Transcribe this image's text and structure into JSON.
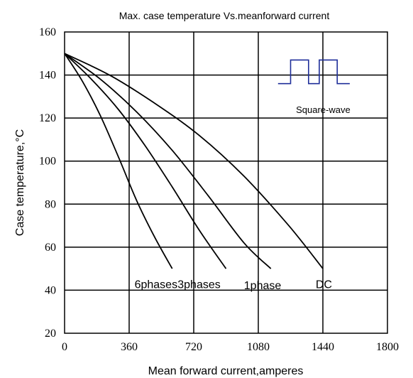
{
  "chart_data": {
    "type": "line",
    "title": "Max. case temperature Vs.meanforward current",
    "xlabel": "Mean forward current,amperes",
    "ylabel": "Case temperature,°C",
    "xlim": [
      0,
      1800
    ],
    "ylim": [
      20,
      160
    ],
    "x_ticks": [
      0,
      360,
      720,
      1080,
      1440,
      1800
    ],
    "y_ticks": [
      20,
      40,
      60,
      80,
      100,
      120,
      140,
      160
    ],
    "x_tick_labels": [
      "0",
      "360",
      "720",
      "1080",
      "1440",
      "1800"
    ],
    "y_tick_labels": [
      "20",
      "40",
      "60",
      "80",
      "100",
      "120",
      "140",
      "160"
    ],
    "grid": true,
    "series": [
      {
        "name": "6phases",
        "label_pos": [
          390,
          43
        ],
        "x": [
          0,
          100,
          200,
          300,
          400,
          500,
          600
        ],
        "y": [
          150,
          137,
          121,
          102,
          82,
          65,
          50
        ]
      },
      {
        "name": "3phases",
        "label_pos": [
          630,
          43
        ],
        "x": [
          0,
          150,
          300,
          450,
          600,
          750,
          900
        ],
        "y": [
          150,
          138,
          124,
          107,
          88,
          68,
          50
        ]
      },
      {
        "name": "1phase",
        "label_pos": [
          1000,
          42.5
        ],
        "x": [
          0,
          200,
          400,
          600,
          800,
          1000,
          1150
        ],
        "y": [
          150,
          138,
          123,
          105,
          84,
          62,
          50
        ]
      },
      {
        "name": "DC",
        "label_pos": [
          1400,
          43
        ],
        "x": [
          0,
          250,
          500,
          750,
          1000,
          1250,
          1440
        ],
        "y": [
          150,
          140,
          127,
          112,
          93,
          70,
          50
        ]
      }
    ],
    "inset": {
      "label": "Square-wave",
      "waveform": [
        [
          1190,
          136
        ],
        [
          1260,
          136
        ],
        [
          1260,
          147
        ],
        [
          1360,
          147
        ],
        [
          1360,
          136
        ],
        [
          1420,
          136
        ],
        [
          1420,
          147
        ],
        [
          1520,
          147
        ],
        [
          1520,
          136
        ],
        [
          1590,
          136
        ]
      ]
    }
  }
}
